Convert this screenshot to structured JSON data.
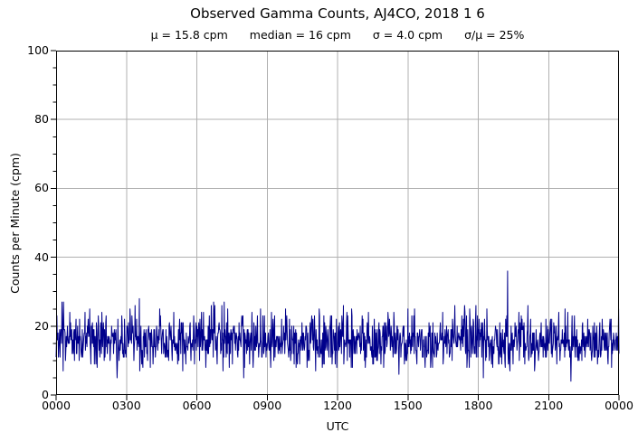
{
  "figure": {
    "title": "Observed Gamma Counts, AJ4CO, 2018 1 6",
    "stats": [
      {
        "name": "mu",
        "text": "μ = 15.8 cpm"
      },
      {
        "name": "median",
        "text": "median = 16 cpm"
      },
      {
        "name": "sigma",
        "text": "σ = 4.0 cpm"
      },
      {
        "name": "sigma-over-mu",
        "text": "σ/μ = 25%"
      }
    ]
  },
  "chart_data": {
    "type": "line",
    "title": "Observed Gamma Counts, AJ4CO, 2018 1 6",
    "subtitle": "μ = 15.8 cpm   median = 16 cpm   σ = 4.0 cpm   σ/μ = 25%",
    "xlabel": "UTC",
    "ylabel": "Counts per Minute (cpm)",
    "x_axis": {
      "unit": "HHMM UTC",
      "range_minutes": [
        0,
        1440
      ],
      "ticks": [
        {
          "minute": 0,
          "label": "0000"
        },
        {
          "minute": 180,
          "label": "0300"
        },
        {
          "minute": 360,
          "label": "0600"
        },
        {
          "minute": 540,
          "label": "0900"
        },
        {
          "minute": 720,
          "label": "1200"
        },
        {
          "minute": 900,
          "label": "1500"
        },
        {
          "minute": 1080,
          "label": "1800"
        },
        {
          "minute": 1260,
          "label": "2100"
        },
        {
          "minute": 1440,
          "label": "0000"
        }
      ]
    },
    "y_axis": {
      "range": [
        0,
        100
      ],
      "major_ticks": [
        0,
        20,
        40,
        60,
        80,
        100
      ],
      "minor_tick_step": 5
    },
    "grid": true,
    "legend": "none",
    "colors": {
      "line": "#00008B",
      "grid": "#b0b0b0",
      "spine": "#000000",
      "text": "#000000"
    },
    "series": {
      "name": "gamma counts",
      "description": "one-minute gamma count samples over 24 h, noisy flat band",
      "n_samples": 1441,
      "distribution": "poisson",
      "mean_cpm": 15.8,
      "median_cpm": 16,
      "sigma_cpm": 4.0,
      "sigma_over_mean": 0.25,
      "observed_min_cpm": 4,
      "observed_max_cpm": 30,
      "seed": 20180106
    }
  }
}
